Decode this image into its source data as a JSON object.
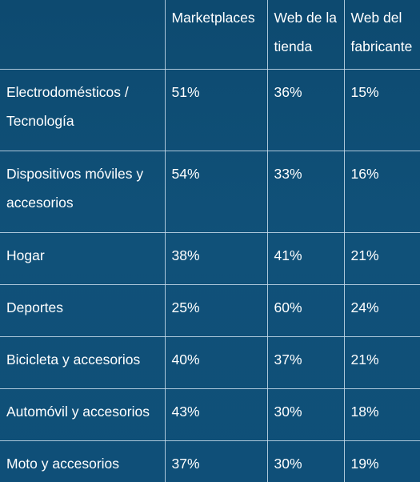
{
  "table": {
    "headers": [
      "",
      "Marketplaces",
      "Web de la tienda",
      "Web del fabricante"
    ],
    "rows": [
      {
        "category": "Electrodomésticos / Tecnología",
        "marketplaces": "51%",
        "web_tienda": "36%",
        "web_fabricante": "15%"
      },
      {
        "category": "Dispositivos móviles y accesorios",
        "marketplaces": "54%",
        "web_tienda": "33%",
        "web_fabricante": "16%"
      },
      {
        "category": "Hogar",
        "marketplaces": "38%",
        "web_tienda": "41%",
        "web_fabricante": "21%"
      },
      {
        "category": "Deportes",
        "marketplaces": "25%",
        "web_tienda": "60%",
        "web_fabricante": "24%"
      },
      {
        "category": "Bicicleta y accesorios",
        "marketplaces": "40%",
        "web_tienda": "37%",
        "web_fabricante": "21%"
      },
      {
        "category": "Automóvil y accesorios",
        "marketplaces": "43%",
        "web_tienda": "30%",
        "web_fabricante": "18%"
      },
      {
        "category": "Moto y accesorios",
        "marketplaces": "37%",
        "web_tienda": "30%",
        "web_fabricante": "19%"
      }
    ]
  },
  "colors": {
    "background": "#0f4d74",
    "text": "#ffffff",
    "grid": "#c8dceb"
  }
}
